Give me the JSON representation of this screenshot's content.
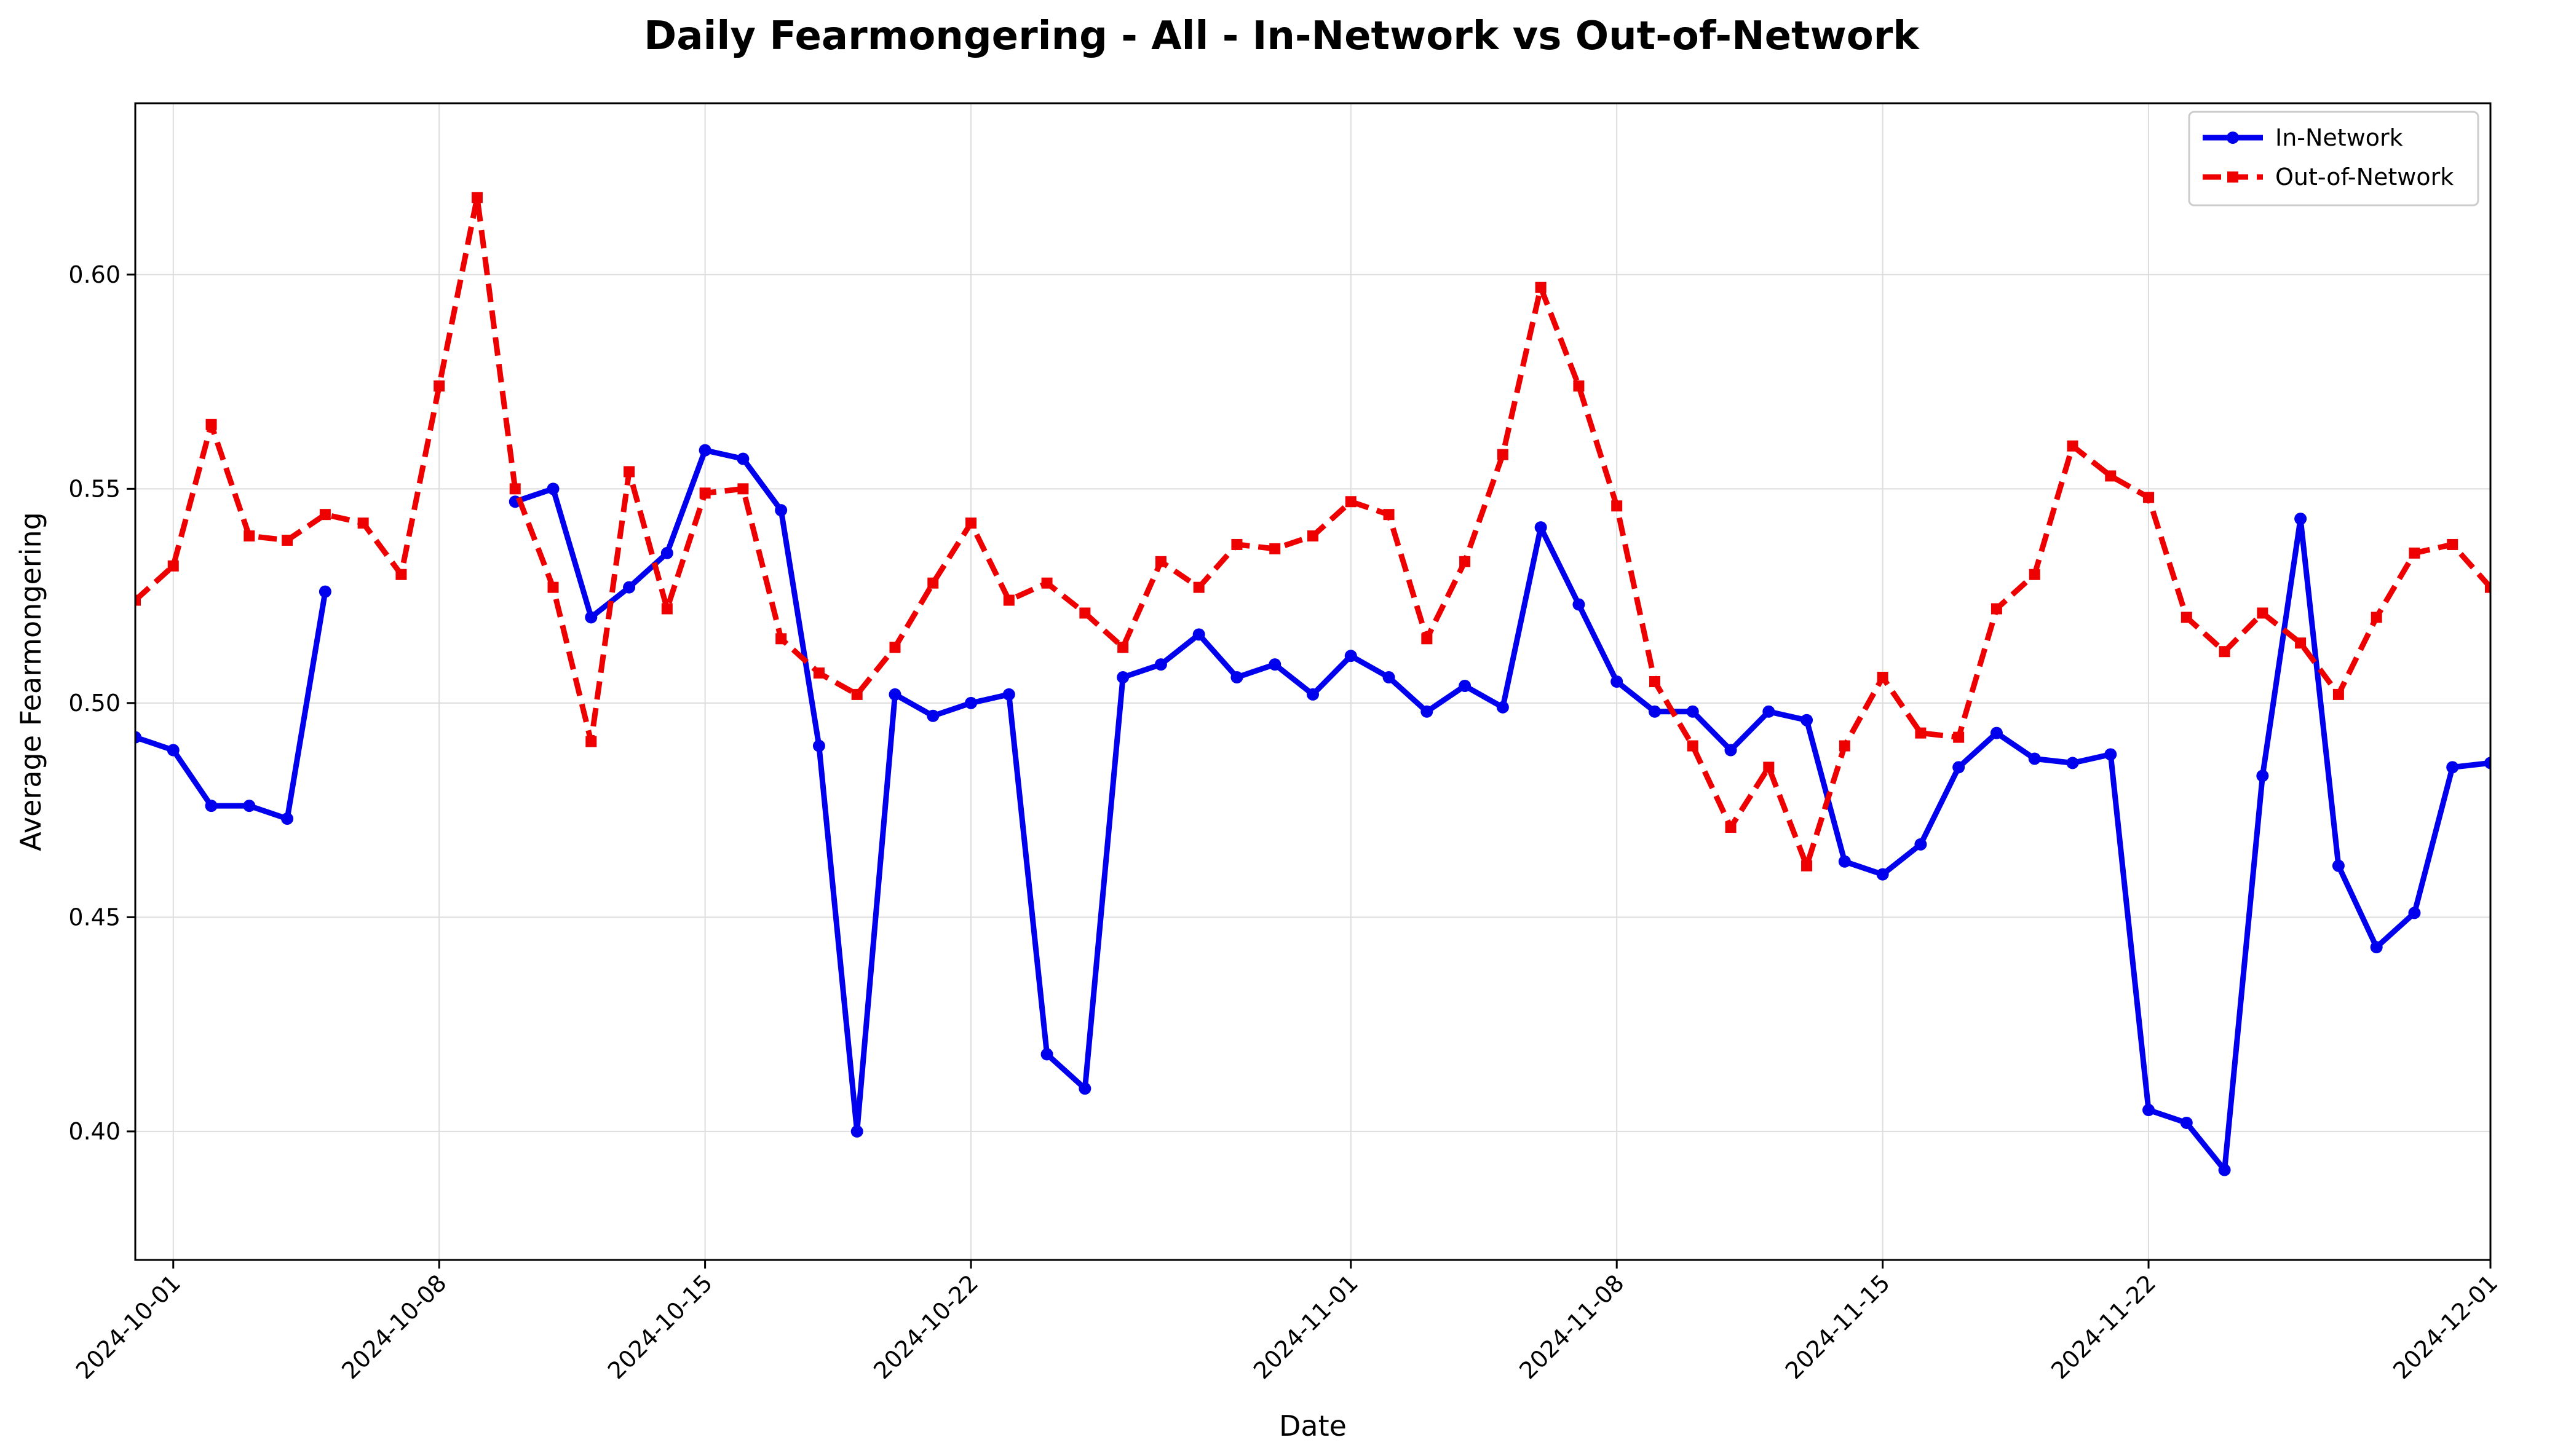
{
  "chart_data": {
    "type": "line",
    "title": "Daily Fearmongering - All - In-Network vs Out-of-Network",
    "xlabel": "Date",
    "ylabel": "Average Fearmongering",
    "x_start": "2024-09-30",
    "x_end": "2024-12-01",
    "x_ticks": [
      "2024-10-01",
      "2024-10-08",
      "2024-10-15",
      "2024-10-22",
      "2024-11-01",
      "2024-11-08",
      "2024-11-15",
      "2024-11-22",
      "2024-12-01"
    ],
    "ylim": [
      0.37,
      0.64
    ],
    "y_ticks": [
      0.4,
      0.45,
      0.5,
      0.55,
      0.6
    ],
    "y_tick_labels": [
      "0.40",
      "0.45",
      "0.50",
      "0.55",
      "0.60"
    ],
    "grid": true,
    "legend_position": "top-right",
    "series": [
      {
        "name": "In-Network",
        "color": "#0000ee",
        "line_style": "solid",
        "marker": "circle",
        "points": [
          [
            "2024-09-30",
            0.492
          ],
          [
            "2024-10-01",
            0.489
          ],
          [
            "2024-10-02",
            0.476
          ],
          [
            "2024-10-03",
            0.476
          ],
          [
            "2024-10-04",
            0.473
          ],
          [
            "2024-10-05",
            0.526
          ],
          null,
          [
            "2024-10-10",
            0.547
          ],
          [
            "2024-10-11",
            0.55
          ],
          [
            "2024-10-12",
            0.52
          ],
          [
            "2024-10-13",
            0.527
          ],
          [
            "2024-10-14",
            0.535
          ],
          [
            "2024-10-15",
            0.559
          ],
          [
            "2024-10-16",
            0.557
          ],
          [
            "2024-10-17",
            0.545
          ],
          [
            "2024-10-18",
            0.49
          ],
          [
            "2024-10-19",
            0.4
          ],
          [
            "2024-10-20",
            0.502
          ],
          [
            "2024-10-21",
            0.497
          ],
          [
            "2024-10-22",
            0.5
          ],
          [
            "2024-10-23",
            0.502
          ],
          [
            "2024-10-24",
            0.418
          ],
          [
            "2024-10-25",
            0.41
          ],
          [
            "2024-10-26",
            0.506
          ],
          [
            "2024-10-27",
            0.509
          ],
          [
            "2024-10-28",
            0.516
          ],
          [
            "2024-10-29",
            0.506
          ],
          [
            "2024-10-30",
            0.509
          ],
          [
            "2024-10-31",
            0.502
          ],
          [
            "2024-11-01",
            0.511
          ],
          [
            "2024-11-02",
            0.506
          ],
          [
            "2024-11-03",
            0.498
          ],
          [
            "2024-11-04",
            0.504
          ],
          [
            "2024-11-05",
            0.499
          ],
          [
            "2024-11-06",
            0.541
          ],
          [
            "2024-11-07",
            0.523
          ],
          [
            "2024-11-08",
            0.505
          ],
          [
            "2024-11-09",
            0.498
          ],
          [
            "2024-11-10",
            0.498
          ],
          [
            "2024-11-11",
            0.489
          ],
          [
            "2024-11-12",
            0.498
          ],
          [
            "2024-11-13",
            0.496
          ],
          [
            "2024-11-14",
            0.463
          ],
          [
            "2024-11-15",
            0.46
          ],
          [
            "2024-11-16",
            0.467
          ],
          [
            "2024-11-17",
            0.485
          ],
          [
            "2024-11-18",
            0.493
          ],
          [
            "2024-11-19",
            0.487
          ],
          [
            "2024-11-20",
            0.486
          ],
          [
            "2024-11-21",
            0.488
          ],
          [
            "2024-11-22",
            0.405
          ],
          [
            "2024-11-23",
            0.402
          ],
          [
            "2024-11-24",
            0.391
          ],
          [
            "2024-11-25",
            0.483
          ],
          [
            "2024-11-26",
            0.543
          ],
          [
            "2024-11-27",
            0.462
          ],
          [
            "2024-11-28",
            0.443
          ],
          [
            "2024-11-29",
            0.451
          ],
          [
            "2024-11-30",
            0.485
          ],
          [
            "2024-12-01",
            0.486
          ]
        ]
      },
      {
        "name": "Out-of-Network",
        "color": "#ee0000",
        "line_style": "dashed",
        "marker": "square",
        "points": [
          [
            "2024-09-30",
            0.524
          ],
          [
            "2024-10-01",
            0.532
          ],
          [
            "2024-10-02",
            0.565
          ],
          [
            "2024-10-03",
            0.539
          ],
          [
            "2024-10-04",
            0.538
          ],
          [
            "2024-10-05",
            0.544
          ],
          [
            "2024-10-06",
            0.542
          ],
          [
            "2024-10-07",
            0.53
          ],
          [
            "2024-10-08",
            0.574
          ],
          [
            "2024-10-09",
            0.618
          ],
          [
            "2024-10-10",
            0.55
          ],
          [
            "2024-10-11",
            0.527
          ],
          [
            "2024-10-12",
            0.491
          ],
          [
            "2024-10-13",
            0.554
          ],
          [
            "2024-10-14",
            0.522
          ],
          [
            "2024-10-15",
            0.549
          ],
          [
            "2024-10-16",
            0.55
          ],
          [
            "2024-10-17",
            0.515
          ],
          [
            "2024-10-18",
            0.507
          ],
          [
            "2024-10-19",
            0.502
          ],
          [
            "2024-10-20",
            0.513
          ],
          [
            "2024-10-21",
            0.528
          ],
          [
            "2024-10-22",
            0.542
          ],
          [
            "2024-10-23",
            0.524
          ],
          [
            "2024-10-24",
            0.528
          ],
          [
            "2024-10-25",
            0.521
          ],
          [
            "2024-10-26",
            0.513
          ],
          [
            "2024-10-27",
            0.533
          ],
          [
            "2024-10-28",
            0.527
          ],
          [
            "2024-10-29",
            0.537
          ],
          [
            "2024-10-30",
            0.536
          ],
          [
            "2024-10-31",
            0.539
          ],
          [
            "2024-11-01",
            0.547
          ],
          [
            "2024-11-02",
            0.544
          ],
          [
            "2024-11-03",
            0.515
          ],
          [
            "2024-11-04",
            0.533
          ],
          [
            "2024-11-05",
            0.558
          ],
          [
            "2024-11-06",
            0.597
          ],
          [
            "2024-11-07",
            0.574
          ],
          [
            "2024-11-08",
            0.546
          ],
          [
            "2024-11-09",
            0.505
          ],
          [
            "2024-11-10",
            0.49
          ],
          [
            "2024-11-11",
            0.471
          ],
          [
            "2024-11-12",
            0.485
          ],
          [
            "2024-11-13",
            0.462
          ],
          [
            "2024-11-14",
            0.49
          ],
          [
            "2024-11-15",
            0.506
          ],
          [
            "2024-11-16",
            0.493
          ],
          [
            "2024-11-17",
            0.492
          ],
          [
            "2024-11-18",
            0.522
          ],
          [
            "2024-11-19",
            0.53
          ],
          [
            "2024-11-20",
            0.56
          ],
          [
            "2024-11-21",
            0.553
          ],
          [
            "2024-11-22",
            0.548
          ],
          [
            "2024-11-23",
            0.52
          ],
          [
            "2024-11-24",
            0.512
          ],
          [
            "2024-11-25",
            0.521
          ],
          [
            "2024-11-26",
            0.514
          ],
          [
            "2024-11-27",
            0.502
          ],
          [
            "2024-11-28",
            0.52
          ],
          [
            "2024-11-29",
            0.535
          ],
          [
            "2024-11-30",
            0.537
          ],
          [
            "2024-12-01",
            0.527
          ]
        ]
      }
    ]
  }
}
